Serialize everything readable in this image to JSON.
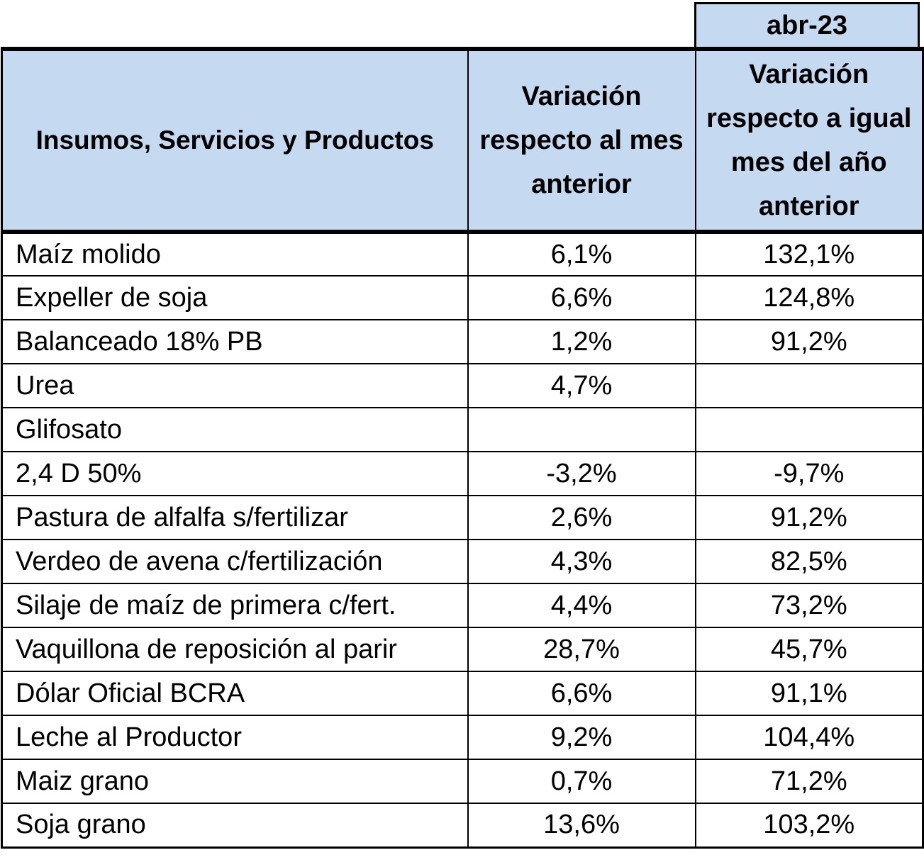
{
  "period": "abr-23",
  "headers": {
    "item": "Insumos, Servicios y Productos",
    "monthly": "Variación respecto al mes anterior",
    "yearly": "Variación respecto a igual mes del año anterior"
  },
  "rows": [
    {
      "item": "Maíz molido",
      "monthly": "6,1%",
      "yearly": "132,1%"
    },
    {
      "item": "Expeller de soja",
      "monthly": "6,6%",
      "yearly": "124,8%"
    },
    {
      "item": "Balanceado 18% PB",
      "monthly": "1,2%",
      "yearly": "91,2%"
    },
    {
      "item": "Urea",
      "monthly": "4,7%",
      "yearly": ""
    },
    {
      "item": "Glifosato",
      "monthly": "",
      "yearly": ""
    },
    {
      "item": "2,4 D 50%",
      "monthly": "-3,2%",
      "yearly": "-9,7%"
    },
    {
      "item": "Pastura de alfalfa s/fertilizar",
      "monthly": "2,6%",
      "yearly": "91,2%"
    },
    {
      "item": "Verdeo de avena  c/fertilización",
      "monthly": "4,3%",
      "yearly": "82,5%"
    },
    {
      "item": "Silaje de maíz de primera c/fert.",
      "monthly": "4,4%",
      "yearly": "73,2%"
    },
    {
      "item": "Vaquillona de reposición al parir",
      "monthly": "28,7%",
      "yearly": "45,7%"
    },
    {
      "item": "Dólar Oficial BCRA",
      "monthly": "6,6%",
      "yearly": "91,1%"
    },
    {
      "item": "Leche al Productor",
      "monthly": "9,2%",
      "yearly": "104,4%"
    },
    {
      "item": "Maiz grano",
      "monthly": "0,7%",
      "yearly": "71,2%"
    },
    {
      "item": "Soja grano",
      "monthly": "13,6%",
      "yearly": "103,2%"
    }
  ],
  "colors": {
    "header_fill": "#c5d9f1",
    "border": "#000000"
  }
}
